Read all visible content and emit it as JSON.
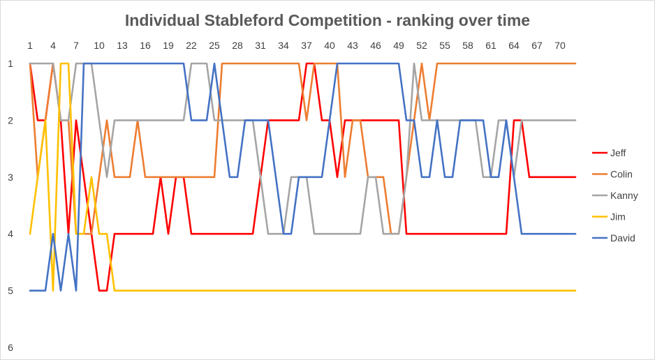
{
  "chart_data": {
    "type": "line",
    "title": "Individual Stableford Competition -  ranking over time",
    "xlabel": "",
    "ylabel": "",
    "x": [
      1,
      2,
      3,
      4,
      5,
      6,
      7,
      8,
      9,
      10,
      11,
      12,
      13,
      14,
      15,
      16,
      17,
      18,
      19,
      20,
      21,
      22,
      23,
      24,
      25,
      26,
      27,
      28,
      29,
      30,
      31,
      32,
      33,
      34,
      35,
      36,
      37,
      38,
      39,
      40,
      41,
      42,
      43,
      44,
      45,
      46,
      47,
      48,
      49,
      50,
      51,
      52,
      53,
      54,
      55,
      56,
      57,
      58,
      59,
      60,
      61,
      62,
      63,
      64,
      65,
      66,
      67,
      68,
      69,
      70,
      71,
      72
    ],
    "x_ticks": [
      1,
      4,
      7,
      10,
      13,
      16,
      19,
      22,
      25,
      28,
      31,
      34,
      37,
      40,
      43,
      46,
      49,
      52,
      55,
      58,
      61,
      64,
      67,
      70
    ],
    "y_ticks": [
      1,
      2,
      3,
      4,
      5,
      6
    ],
    "ylim": [
      1,
      6
    ],
    "y_inverted": true,
    "x_axis_position": "top",
    "grid": false,
    "legend_position": "right",
    "series": [
      {
        "name": "Jeff",
        "color": "#FF0000",
        "values": [
          1,
          2,
          2,
          1,
          2,
          4,
          2,
          3,
          4,
          5,
          5,
          4,
          4,
          4,
          4,
          4,
          4,
          3,
          4,
          3,
          3,
          4,
          4,
          4,
          4,
          4,
          4,
          4,
          4,
          4,
          3,
          2,
          2,
          2,
          2,
          2,
          1,
          1,
          2,
          2,
          3,
          2,
          2,
          2,
          2,
          2,
          2,
          2,
          2,
          4,
          4,
          4,
          4,
          4,
          4,
          4,
          4,
          4,
          4,
          4,
          4,
          4,
          4,
          2,
          2,
          3,
          3,
          3,
          3,
          3,
          3,
          3
        ]
      },
      {
        "name": "Colin",
        "color": "#ED7D31",
        "values": [
          1,
          3,
          2,
          1,
          2,
          2,
          4,
          4,
          4,
          3,
          2,
          3,
          3,
          3,
          2,
          3,
          3,
          3,
          3,
          3,
          3,
          3,
          3,
          3,
          3,
          1,
          1,
          1,
          1,
          1,
          1,
          1,
          1,
          1,
          1,
          1,
          2,
          1,
          1,
          1,
          1,
          3,
          2,
          2,
          3,
          3,
          3,
          4,
          4,
          3,
          2,
          1,
          2,
          1,
          1,
          1,
          1,
          1,
          1,
          1,
          1,
          1,
          1,
          1,
          1,
          1,
          1,
          1,
          1,
          1,
          1,
          1
        ]
      },
      {
        "name": "Kanny",
        "color": "#A5A5A5",
        "values": [
          1,
          1,
          1,
          1,
          2,
          2,
          1,
          1,
          1,
          2,
          3,
          2,
          2,
          2,
          2,
          2,
          2,
          2,
          2,
          2,
          2,
          1,
          1,
          1,
          2,
          2,
          2,
          2,
          2,
          2,
          3,
          4,
          4,
          4,
          3,
          3,
          3,
          4,
          4,
          4,
          4,
          4,
          4,
          4,
          3,
          3,
          4,
          4,
          4,
          3,
          1,
          2,
          2,
          2,
          2,
          2,
          2,
          2,
          2,
          3,
          3,
          2,
          2,
          3,
          2,
          2,
          2,
          2,
          2,
          2,
          2,
          2
        ]
      },
      {
        "name": "Jim",
        "color": "#FFC000",
        "values": [
          4,
          3,
          2,
          5,
          1,
          1,
          4,
          4,
          3,
          4,
          4,
          5,
          5,
          5,
          5,
          5,
          5,
          5,
          5,
          5,
          5,
          5,
          5,
          5,
          5,
          5,
          5,
          5,
          5,
          5,
          5,
          5,
          5,
          5,
          5,
          5,
          5,
          5,
          5,
          5,
          5,
          5,
          5,
          5,
          5,
          5,
          5,
          5,
          5,
          5,
          5,
          5,
          5,
          5,
          5,
          5,
          5,
          5,
          5,
          5,
          5,
          5,
          5,
          5,
          5,
          5,
          5,
          5,
          5,
          5,
          5,
          5
        ]
      },
      {
        "name": "David",
        "color": "#4472C4",
        "values": [
          5,
          5,
          5,
          4,
          5,
          4,
          5,
          1,
          1,
          1,
          1,
          1,
          1,
          1,
          1,
          1,
          1,
          1,
          1,
          1,
          1,
          2,
          2,
          2,
          1,
          2,
          3,
          3,
          2,
          2,
          2,
          2,
          3,
          4,
          4,
          3,
          3,
          3,
          3,
          2,
          1,
          1,
          1,
          1,
          1,
          1,
          1,
          1,
          1,
          2,
          2,
          3,
          3,
          2,
          3,
          3,
          2,
          2,
          2,
          2,
          3,
          3,
          2,
          3,
          4,
          4,
          4,
          4,
          4,
          4,
          4,
          4
        ]
      }
    ]
  }
}
